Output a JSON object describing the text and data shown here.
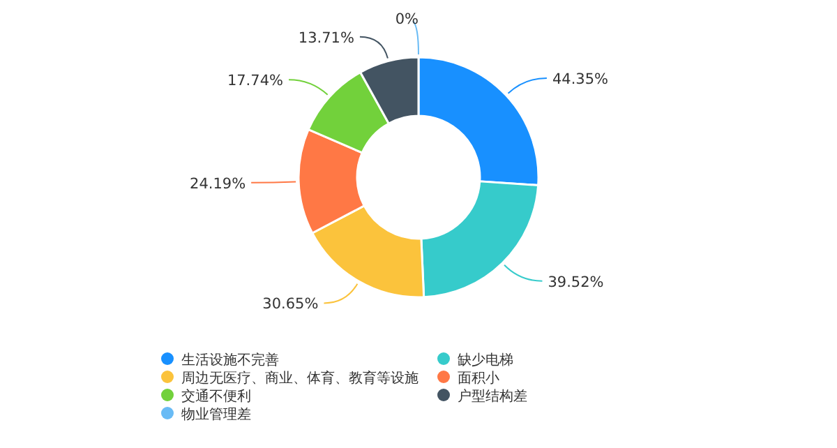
{
  "chart_data": {
    "type": "donut",
    "categories": [
      "生活设施不完善",
      "缺少电梯",
      "周边无医疗、商业、体育、教育等设施",
      "面积小",
      "交通不便利",
      "户型结构差",
      "物业管理差"
    ],
    "values": [
      44.35,
      39.52,
      30.65,
      24.19,
      17.74,
      13.71,
      0
    ],
    "value_labels": [
      "44.35%",
      "39.52%",
      "30.65%",
      "24.19%",
      "17.74%",
      "13.71%",
      "0%"
    ],
    "colors": [
      "#1890ff",
      "#36cbcb",
      "#fbc33c",
      "#ff7845",
      "#72d13b",
      "#435462",
      "#69bbf5"
    ],
    "legend": "bottom left"
  }
}
